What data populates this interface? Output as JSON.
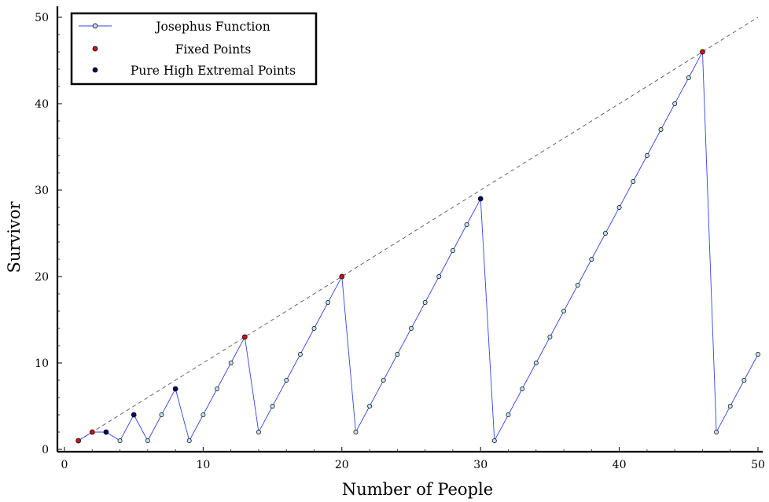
{
  "chart_data": {
    "type": "line",
    "title": "",
    "xlabel": "Number of People",
    "ylabel": "Survivor",
    "xlim": [
      0,
      50
    ],
    "ylim": [
      0,
      50
    ],
    "xticks": [
      0,
      10,
      20,
      30,
      40,
      50
    ],
    "yticks": [
      0,
      10,
      20,
      30,
      40,
      50
    ],
    "grid": false,
    "legend_position": "top-left",
    "reference_line": {
      "style": "dashed",
      "color": "#555555",
      "from": [
        1,
        1
      ],
      "to": [
        50,
        50
      ]
    },
    "series": [
      {
        "name": "Josephus Function",
        "color": "#3344ee",
        "marker_fill": "#bfe3f0",
        "x": [
          1,
          2,
          3,
          4,
          5,
          6,
          7,
          8,
          9,
          10,
          11,
          12,
          13,
          14,
          15,
          16,
          17,
          18,
          19,
          20,
          21,
          22,
          23,
          24,
          25,
          26,
          27,
          28,
          29,
          30,
          31,
          32,
          33,
          34,
          35,
          36,
          37,
          38,
          39,
          40,
          41,
          42,
          43,
          44,
          45,
          46,
          47,
          48,
          49,
          50
        ],
        "y": [
          1,
          2,
          2,
          1,
          4,
          1,
          4,
          7,
          1,
          4,
          7,
          10,
          13,
          2,
          5,
          8,
          11,
          14,
          17,
          20,
          2,
          5,
          8,
          11,
          14,
          17,
          20,
          23,
          26,
          29,
          1,
          4,
          7,
          10,
          13,
          16,
          19,
          22,
          25,
          28,
          31,
          34,
          37,
          40,
          43,
          46,
          2,
          5,
          8,
          11
        ]
      },
      {
        "name": "Fixed Points",
        "color": "#cc1111",
        "x": [
          1,
          2,
          13,
          20,
          46
        ],
        "y": [
          1,
          2,
          13,
          20,
          46
        ]
      },
      {
        "name": "Pure High Extremal Points",
        "color": "#0a0a5a",
        "x": [
          3,
          5,
          8,
          30
        ],
        "y": [
          2,
          4,
          7,
          29
        ]
      }
    ]
  }
}
